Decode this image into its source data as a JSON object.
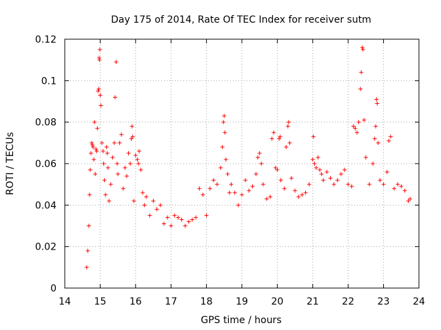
{
  "chart_data": {
    "type": "scatter",
    "title": "Day 175 of 2014, Rate Of TEC Index for receiver sutm",
    "xlabel": "GPS time / hours",
    "ylabel": "ROTI / TECUs",
    "xlim": [
      14,
      24
    ],
    "ylim": [
      0,
      0.12
    ],
    "xticks": [
      "14",
      "15",
      "16",
      "17",
      "18",
      "19",
      "20",
      "21",
      "22",
      "23",
      "24"
    ],
    "yticks": [
      "0",
      "0.02",
      "0.04",
      "0.06",
      "0.08",
      "0.1",
      "0.12"
    ],
    "grid": true,
    "marker": "+",
    "series": [
      {
        "name": "ROTI",
        "color": "#ff0000",
        "points": [
          [
            14.62,
            0.01
          ],
          [
            14.65,
            0.018
          ],
          [
            14.68,
            0.03
          ],
          [
            14.7,
            0.045
          ],
          [
            14.72,
            0.057
          ],
          [
            14.74,
            0.065
          ],
          [
            14.76,
            0.07
          ],
          [
            14.78,
            0.069
          ],
          [
            14.8,
            0.068
          ],
          [
            14.82,
            0.062
          ],
          [
            14.84,
            0.08
          ],
          [
            14.86,
            0.055
          ],
          [
            14.88,
            0.067
          ],
          [
            14.9,
            0.066
          ],
          [
            14.92,
            0.077
          ],
          [
            14.94,
            0.095
          ],
          [
            14.96,
            0.096
          ],
          [
            14.97,
            0.111
          ],
          [
            14.98,
            0.11
          ],
          [
            14.99,
            0.115
          ],
          [
            15.0,
            0.093
          ],
          [
            15.02,
            0.088
          ],
          [
            15.05,
            0.07
          ],
          [
            15.08,
            0.066
          ],
          [
            15.1,
            0.06
          ],
          [
            15.12,
            0.052
          ],
          [
            15.15,
            0.045
          ],
          [
            15.18,
            0.068
          ],
          [
            15.2,
            0.065
          ],
          [
            15.22,
            0.058
          ],
          [
            15.25,
            0.042
          ],
          [
            15.3,
            0.05
          ],
          [
            15.35,
            0.063
          ],
          [
            15.4,
            0.07
          ],
          [
            15.42,
            0.092
          ],
          [
            15.45,
            0.109
          ],
          [
            15.48,
            0.06
          ],
          [
            15.5,
            0.055
          ],
          [
            15.55,
            0.07
          ],
          [
            15.6,
            0.074
          ],
          [
            15.65,
            0.048
          ],
          [
            15.7,
            0.058
          ],
          [
            15.75,
            0.054
          ],
          [
            15.8,
            0.065
          ],
          [
            15.85,
            0.06
          ],
          [
            15.88,
            0.072
          ],
          [
            15.9,
            0.078
          ],
          [
            15.92,
            0.073
          ],
          [
            15.95,
            0.042
          ],
          [
            16.0,
            0.064
          ],
          [
            16.05,
            0.062
          ],
          [
            16.08,
            0.06
          ],
          [
            16.1,
            0.066
          ],
          [
            16.15,
            0.057
          ],
          [
            16.2,
            0.046
          ],
          [
            16.25,
            0.04
          ],
          [
            16.3,
            0.044
          ],
          [
            16.4,
            0.035
          ],
          [
            16.5,
            0.042
          ],
          [
            16.6,
            0.038
          ],
          [
            16.7,
            0.04
          ],
          [
            16.8,
            0.031
          ],
          [
            16.9,
            0.034
          ],
          [
            17.0,
            0.03
          ],
          [
            17.1,
            0.035
          ],
          [
            17.2,
            0.034
          ],
          [
            17.3,
            0.033
          ],
          [
            17.4,
            0.03
          ],
          [
            17.5,
            0.032
          ],
          [
            17.6,
            0.033
          ],
          [
            17.7,
            0.034
          ],
          [
            17.8,
            0.048
          ],
          [
            17.9,
            0.045
          ],
          [
            18.0,
            0.035
          ],
          [
            18.1,
            0.048
          ],
          [
            18.2,
            0.052
          ],
          [
            18.3,
            0.05
          ],
          [
            18.4,
            0.058
          ],
          [
            18.45,
            0.068
          ],
          [
            18.48,
            0.08
          ],
          [
            18.5,
            0.083
          ],
          [
            18.52,
            0.075
          ],
          [
            18.55,
            0.062
          ],
          [
            18.6,
            0.055
          ],
          [
            18.65,
            0.046
          ],
          [
            18.7,
            0.05
          ],
          [
            18.8,
            0.046
          ],
          [
            18.9,
            0.04
          ],
          [
            19.0,
            0.045
          ],
          [
            19.1,
            0.052
          ],
          [
            19.2,
            0.047
          ],
          [
            19.3,
            0.049
          ],
          [
            19.4,
            0.055
          ],
          [
            19.45,
            0.063
          ],
          [
            19.5,
            0.065
          ],
          [
            19.55,
            0.06
          ],
          [
            19.6,
            0.05
          ],
          [
            19.7,
            0.043
          ],
          [
            19.8,
            0.044
          ],
          [
            19.85,
            0.072
          ],
          [
            19.9,
            0.075
          ],
          [
            19.95,
            0.058
          ],
          [
            20.0,
            0.057
          ],
          [
            20.05,
            0.072
          ],
          [
            20.08,
            0.073
          ],
          [
            20.1,
            0.052
          ],
          [
            20.2,
            0.048
          ],
          [
            20.25,
            0.068
          ],
          [
            20.3,
            0.078
          ],
          [
            20.32,
            0.08
          ],
          [
            20.35,
            0.07
          ],
          [
            20.4,
            0.053
          ],
          [
            20.5,
            0.047
          ],
          [
            20.6,
            0.044
          ],
          [
            20.7,
            0.045
          ],
          [
            20.8,
            0.046
          ],
          [
            20.9,
            0.05
          ],
          [
            21.0,
            0.062
          ],
          [
            21.02,
            0.073
          ],
          [
            21.05,
            0.06
          ],
          [
            21.1,
            0.058
          ],
          [
            21.15,
            0.063
          ],
          [
            21.2,
            0.057
          ],
          [
            21.25,
            0.055
          ],
          [
            21.3,
            0.052
          ],
          [
            21.4,
            0.056
          ],
          [
            21.5,
            0.053
          ],
          [
            21.6,
            0.05
          ],
          [
            21.7,
            0.052
          ],
          [
            21.8,
            0.055
          ],
          [
            21.9,
            0.057
          ],
          [
            22.0,
            0.05
          ],
          [
            22.1,
            0.049
          ],
          [
            22.15,
            0.078
          ],
          [
            22.2,
            0.077
          ],
          [
            22.25,
            0.075
          ],
          [
            22.3,
            0.08
          ],
          [
            22.35,
            0.096
          ],
          [
            22.37,
            0.104
          ],
          [
            22.4,
            0.116
          ],
          [
            22.42,
            0.115
          ],
          [
            22.45,
            0.081
          ],
          [
            22.5,
            0.063
          ],
          [
            22.6,
            0.05
          ],
          [
            22.7,
            0.06
          ],
          [
            22.75,
            0.072
          ],
          [
            22.78,
            0.078
          ],
          [
            22.8,
            0.091
          ],
          [
            22.82,
            0.089
          ],
          [
            22.85,
            0.07
          ],
          [
            22.9,
            0.052
          ],
          [
            23.0,
            0.05
          ],
          [
            23.1,
            0.056
          ],
          [
            23.15,
            0.071
          ],
          [
            23.2,
            0.073
          ],
          [
            23.3,
            0.048
          ],
          [
            23.4,
            0.05
          ],
          [
            23.5,
            0.049
          ],
          [
            23.6,
            0.047
          ],
          [
            23.7,
            0.042
          ],
          [
            23.75,
            0.043
          ]
        ]
      }
    ]
  }
}
